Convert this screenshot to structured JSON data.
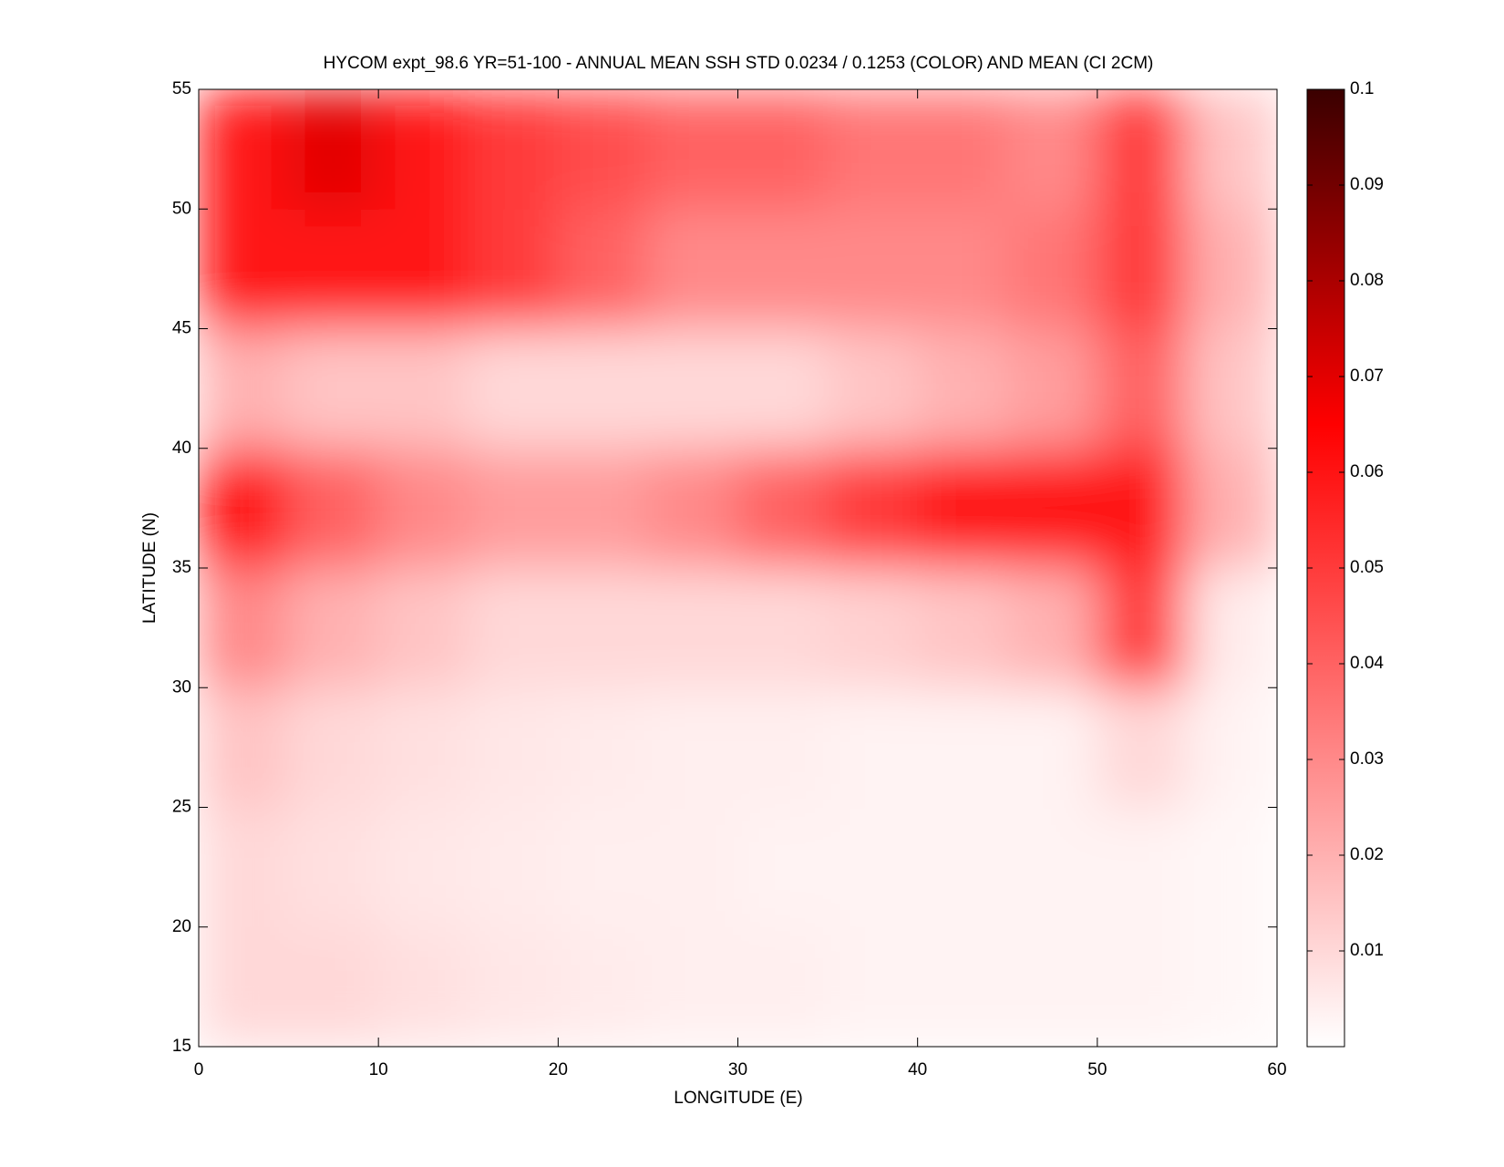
{
  "chart_data": {
    "type": "heatmap",
    "title": "HYCOM expt_98.6 YR=51-100 - ANNUAL MEAN SSH STD 0.0234 / 0.1253 (COLOR) AND MEAN (CI 2CM)",
    "x_label": "LONGITUDE (E)",
    "y_label": "LATITUDE (N)",
    "xlim": [
      0,
      60
    ],
    "ylim": [
      15,
      55
    ],
    "xticks": [
      0,
      10,
      20,
      30,
      40,
      50,
      60
    ],
    "yticks": [
      15,
      20,
      25,
      30,
      35,
      40,
      45,
      50,
      55
    ],
    "xbins": [
      0,
      5,
      10,
      15,
      20,
      25,
      30,
      35,
      40,
      45,
      50,
      55,
      60
    ],
    "ybins": [
      15,
      20,
      25,
      30,
      35,
      40,
      45,
      50,
      55
    ],
    "z": [
      [
        0.01,
        0.01,
        0.008,
        0.006,
        0.005,
        0.004,
        0.004,
        0.003,
        0.003,
        0.003,
        0.003,
        0.002
      ],
      [
        0.01,
        0.008,
        0.006,
        0.005,
        0.004,
        0.004,
        0.003,
        0.003,
        0.003,
        0.003,
        0.003,
        0.002
      ],
      [
        0.015,
        0.01,
        0.008,
        0.006,
        0.005,
        0.004,
        0.004,
        0.003,
        0.003,
        0.003,
        0.01,
        0.003
      ],
      [
        0.03,
        0.02,
        0.015,
        0.01,
        0.01,
        0.01,
        0.01,
        0.012,
        0.015,
        0.02,
        0.05,
        0.005
      ],
      [
        0.06,
        0.04,
        0.03,
        0.025,
        0.025,
        0.03,
        0.04,
        0.05,
        0.06,
        0.06,
        0.06,
        0.02
      ],
      [
        0.02,
        0.015,
        0.015,
        0.01,
        0.01,
        0.01,
        0.01,
        0.015,
        0.02,
        0.025,
        0.04,
        0.015
      ],
      [
        0.06,
        0.06,
        0.06,
        0.05,
        0.04,
        0.03,
        0.03,
        0.03,
        0.03,
        0.035,
        0.05,
        0.02
      ],
      [
        0.06,
        0.07,
        0.06,
        0.05,
        0.045,
        0.04,
        0.04,
        0.035,
        0.035,
        0.03,
        0.05,
        0.015
      ]
    ],
    "clim": [
      0,
      0.1
    ],
    "cticks": [
      0.01,
      0.02,
      0.03,
      0.04,
      0.05,
      0.06,
      0.07,
      0.08,
      0.09,
      0.1
    ],
    "colormap": [
      {
        "value": 0,
        "color": "#ffffff"
      },
      {
        "value": 0.065,
        "color": "#ff0000"
      },
      {
        "value": 0.1,
        "color": "#3a0000"
      }
    ]
  }
}
